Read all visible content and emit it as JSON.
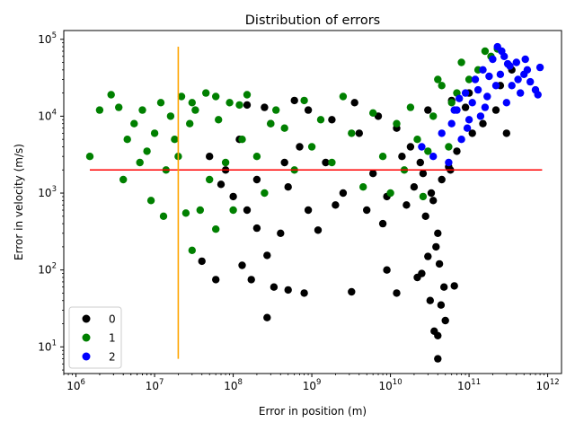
{
  "chart_data": {
    "type": "scatter",
    "title": "Distribution of errors",
    "xlabel": "Error in position (m)",
    "ylabel": "Error in velocity (m/s)",
    "xscale": "log",
    "yscale": "log",
    "xlim": [
      700000,
      1500000000000
    ],
    "ylim": [
      4.5,
      130000
    ],
    "xticks": [
      {
        "value": 1000000,
        "base": "10",
        "exp": "6"
      },
      {
        "value": 10000000,
        "base": "10",
        "exp": "7"
      },
      {
        "value": 100000000,
        "base": "10",
        "exp": "8"
      },
      {
        "value": 1000000000,
        "base": "10",
        "exp": "9"
      },
      {
        "value": 10000000000,
        "base": "10",
        "exp": "10"
      },
      {
        "value": 100000000000,
        "base": "10",
        "exp": "11"
      },
      {
        "value": 1000000000000,
        "base": "10",
        "exp": "12"
      }
    ],
    "yticks": [
      {
        "value": 10,
        "base": "10",
        "exp": "1"
      },
      {
        "value": 100,
        "base": "10",
        "exp": "2"
      },
      {
        "value": 1000,
        "base": "10",
        "exp": "3"
      },
      {
        "value": 10000,
        "base": "10",
        "exp": "4"
      },
      {
        "value": 100000,
        "base": "10",
        "exp": "5"
      }
    ],
    "grid": false,
    "legend_position": "lower-left",
    "series": [
      {
        "name": "0",
        "color": "#000000",
        "points": [
          [
            50000000,
            3000
          ],
          [
            80000000,
            2000
          ],
          [
            120000000,
            5000
          ],
          [
            200000000,
            1500
          ],
          [
            300000000,
            8000
          ],
          [
            500000000,
            1200
          ],
          [
            700000000,
            4000
          ],
          [
            900000000,
            12000
          ],
          [
            1500000000,
            2500
          ],
          [
            2500000000,
            1000
          ],
          [
            4000000000,
            6000
          ],
          [
            6000000000,
            1800
          ],
          [
            9000000000,
            900
          ],
          [
            14000000000,
            3000
          ],
          [
            20000000000,
            1200
          ],
          [
            28000000000,
            500
          ],
          [
            35000000000,
            800
          ],
          [
            40000000000,
            300
          ],
          [
            45000000000,
            1500
          ],
          [
            55000000000,
            2200
          ],
          [
            38000000000,
            200
          ],
          [
            30000000000,
            150
          ],
          [
            42000000000,
            120
          ],
          [
            25000000000,
            90
          ],
          [
            48000000000,
            60
          ],
          [
            22000000000,
            80
          ],
          [
            32000000000,
            40
          ],
          [
            44000000000,
            35
          ],
          [
            36000000000,
            16
          ],
          [
            40000000000,
            14
          ],
          [
            40000000000,
            7
          ],
          [
            50000000000,
            22
          ],
          [
            65000000000,
            62
          ],
          [
            12000000000,
            50
          ],
          [
            9000000000,
            100
          ],
          [
            3200000000,
            52
          ],
          [
            800000000,
            50
          ],
          [
            500000000,
            55
          ],
          [
            330000000,
            60
          ],
          [
            270000000,
            24
          ],
          [
            170000000,
            75
          ],
          [
            130000000,
            115
          ],
          [
            270000000,
            155
          ],
          [
            60000000,
            75
          ],
          [
            40000000,
            130
          ],
          [
            400000000,
            300
          ],
          [
            200000000,
            350
          ],
          [
            1200000000,
            330
          ],
          [
            5000000000,
            600
          ],
          [
            8000000000,
            400
          ],
          [
            150000000,
            14000
          ],
          [
            250000000,
            13000
          ],
          [
            600000000,
            16000
          ],
          [
            1800000000,
            9000
          ],
          [
            3500000000,
            15000
          ],
          [
            7000000000,
            10000
          ],
          [
            12000000000,
            7000
          ],
          [
            18000000000,
            4000
          ],
          [
            24000000000,
            2500
          ],
          [
            26000000000,
            1800
          ],
          [
            16000000000,
            700
          ],
          [
            33000000000,
            1000
          ],
          [
            58000000000,
            2000
          ],
          [
            70000000000,
            3500
          ],
          [
            110000000000,
            6000
          ],
          [
            220000000000,
            12000
          ],
          [
            300000000000,
            6000
          ],
          [
            250000000000,
            25000
          ],
          [
            350000000000,
            40000
          ],
          [
            150000000000,
            8000
          ],
          [
            90000000000,
            13000
          ],
          [
            100000000000,
            20000
          ],
          [
            60000000000,
            16000
          ],
          [
            30000000000,
            12000
          ],
          [
            2000000000,
            700
          ],
          [
            900000000,
            600
          ],
          [
            150000000,
            600
          ],
          [
            100000000,
            900
          ],
          [
            70000000,
            1300
          ],
          [
            450000000,
            2500
          ]
        ]
      },
      {
        "name": "1",
        "color": "#008000",
        "points": [
          [
            1500000,
            3000
          ],
          [
            2000000,
            12000
          ],
          [
            2800000,
            19000
          ],
          [
            3500000,
            13000
          ],
          [
            4000000,
            1500
          ],
          [
            4500000,
            5000
          ],
          [
            5500000,
            8000
          ],
          [
            6500000,
            2500
          ],
          [
            7000000,
            12000
          ],
          [
            8000000,
            3500
          ],
          [
            9000000,
            800
          ],
          [
            10000000,
            6000
          ],
          [
            12000000,
            15000
          ],
          [
            13000000,
            500
          ],
          [
            14000000,
            2000
          ],
          [
            16000000,
            10000
          ],
          [
            18000000,
            5000
          ],
          [
            20000000,
            3000
          ],
          [
            22000000,
            18000
          ],
          [
            25000000,
            550
          ],
          [
            28000000,
            8000
          ],
          [
            30000000,
            180
          ],
          [
            33000000,
            12000
          ],
          [
            38000000,
            600
          ],
          [
            45000000,
            20000
          ],
          [
            50000000,
            1500
          ],
          [
            60000000,
            340
          ],
          [
            65000000,
            9000
          ],
          [
            80000000,
            2500
          ],
          [
            90000000,
            15000
          ],
          [
            100000000,
            600
          ],
          [
            130000000,
            5000
          ],
          [
            150000000,
            19000
          ],
          [
            200000000,
            3000
          ],
          [
            250000000,
            1000
          ],
          [
            350000000,
            12000
          ],
          [
            450000000,
            7000
          ],
          [
            600000000,
            2000
          ],
          [
            800000000,
            16000
          ],
          [
            1000000000,
            4000
          ],
          [
            1300000000,
            9000
          ],
          [
            1800000000,
            2500
          ],
          [
            2500000000,
            18000
          ],
          [
            3200000000,
            6000
          ],
          [
            4500000000,
            1200
          ],
          [
            6000000000,
            11000
          ],
          [
            8000000000,
            3000
          ],
          [
            10000000000,
            1000
          ],
          [
            12000000000,
            8000
          ],
          [
            15000000000,
            2000
          ],
          [
            18000000000,
            13000
          ],
          [
            22000000000,
            5000
          ],
          [
            26000000000,
            900
          ],
          [
            30000000000,
            3500
          ],
          [
            35000000000,
            10000
          ],
          [
            40000000000,
            30000
          ],
          [
            45000000000,
            25000
          ],
          [
            55000000000,
            4000
          ],
          [
            60000000000,
            15000
          ],
          [
            70000000000,
            20000
          ],
          [
            80000000000,
            50000
          ],
          [
            100000000000,
            30000
          ],
          [
            130000000000,
            40000
          ],
          [
            160000000000,
            70000
          ],
          [
            190000000000,
            60000
          ],
          [
            230000000000,
            75000
          ],
          [
            30000000,
            15000
          ],
          [
            60000000,
            18000
          ],
          [
            120000000,
            14000
          ],
          [
            300000000,
            8000
          ]
        ]
      },
      {
        "name": "2",
        "color": "#0000ff",
        "points": [
          [
            25000000000,
            4000
          ],
          [
            35000000000,
            3000
          ],
          [
            45000000000,
            6000
          ],
          [
            55000000000,
            2500
          ],
          [
            60000000000,
            8000
          ],
          [
            70000000000,
            12000
          ],
          [
            80000000000,
            5000
          ],
          [
            90000000000,
            20000
          ],
          [
            100000000000,
            9000
          ],
          [
            110000000000,
            15000
          ],
          [
            120000000000,
            30000
          ],
          [
            140000000000,
            10000
          ],
          [
            150000000000,
            40000
          ],
          [
            170000000000,
            18000
          ],
          [
            200000000000,
            55000
          ],
          [
            220000000000,
            25000
          ],
          [
            230000000000,
            80000
          ],
          [
            250000000000,
            35000
          ],
          [
            280000000000,
            60000
          ],
          [
            300000000000,
            15000
          ],
          [
            330000000000,
            45000
          ],
          [
            350000000000,
            25000
          ],
          [
            400000000000,
            50000
          ],
          [
            450000000000,
            20000
          ],
          [
            500000000000,
            35000
          ],
          [
            550000000000,
            40000
          ],
          [
            600000000000,
            28000
          ],
          [
            700000000000,
            22000
          ],
          [
            800000000000,
            43000
          ],
          [
            750000000000,
            19000
          ],
          [
            65000000000,
            12000
          ],
          [
            75000000000,
            17000
          ],
          [
            130000000000,
            22000
          ],
          [
            180000000000,
            33000
          ],
          [
            260000000000,
            70000
          ],
          [
            310000000000,
            48000
          ],
          [
            420000000000,
            30000
          ],
          [
            520000000000,
            55000
          ],
          [
            95000000000,
            7000
          ],
          [
            160000000000,
            13000
          ]
        ]
      }
    ],
    "lines": [
      {
        "kind": "horizontal",
        "y": 2000,
        "x_from": 1500000,
        "x_to": 850000000000,
        "color": "#ff0000"
      },
      {
        "kind": "vertical",
        "x": 20000000,
        "y_from": 7,
        "y_to": 80000,
        "color": "#ffa500"
      }
    ]
  }
}
